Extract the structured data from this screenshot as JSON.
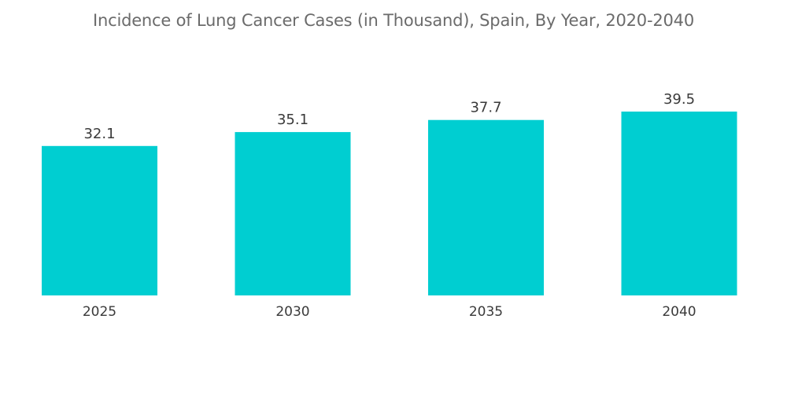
{
  "chart_data": {
    "type": "bar",
    "title": "Incidence of Lung Cancer Cases (in Thousand), Spain, By Year, 2020-2040",
    "categories": [
      "2025",
      "2030",
      "2035",
      "2040"
    ],
    "values": [
      32.1,
      35.1,
      37.7,
      39.5
    ],
    "value_labels": [
      "32.1",
      "35.1",
      "37.7",
      "39.5"
    ],
    "xlabel": "",
    "ylabel": "",
    "ylim": [
      0,
      39.5
    ],
    "grid": false,
    "legend": "none",
    "bar_color": "#00CED1"
  }
}
